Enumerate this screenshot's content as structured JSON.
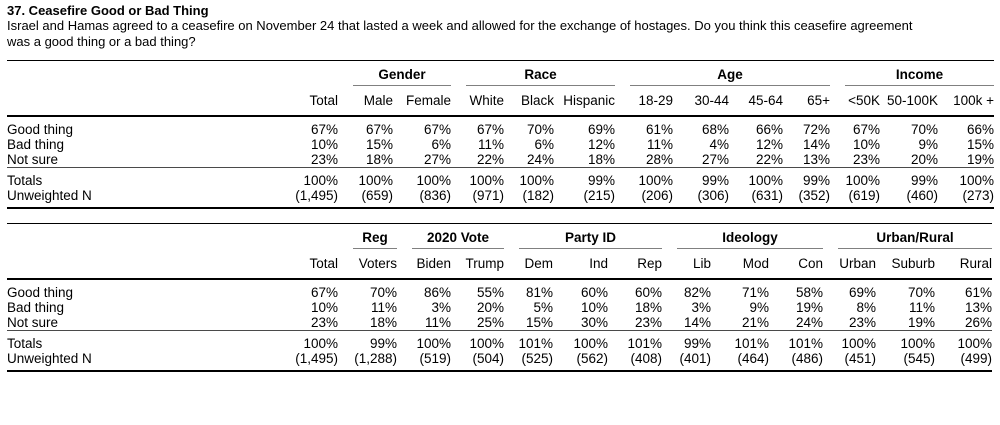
{
  "header": {
    "title": "37. Ceasefire Good or Bad Thing",
    "description_line1": "Israel and Hamas agreed to a ceasefire on November 24 that lasted a week and allowed for the exchange of hostages. Do you think this ceasefire agreement",
    "description_line2": "was a good thing or a bad thing?"
  },
  "tables": [
    {
      "name": "demographics",
      "groups": [
        {
          "label": "",
          "span": 1
        },
        {
          "label": "Gender",
          "span": 2
        },
        {
          "label": "Race",
          "span": 3
        },
        {
          "label": "Age",
          "span": 4
        },
        {
          "label": "Income",
          "span": 3
        }
      ],
      "columns": [
        "Total",
        "Male",
        "Female",
        "White",
        "Black",
        "Hispanic",
        "18-29",
        "30-44",
        "45-64",
        "65+",
        "<50K",
        "50-100K",
        "100k +"
      ],
      "rows": [
        {
          "label": "Good thing",
          "values": [
            "67%",
            "67%",
            "67%",
            "67%",
            "70%",
            "69%",
            "61%",
            "68%",
            "66%",
            "72%",
            "67%",
            "70%",
            "66%"
          ]
        },
        {
          "label": "Bad thing",
          "values": [
            "10%",
            "15%",
            "6%",
            "11%",
            "6%",
            "12%",
            "11%",
            "4%",
            "12%",
            "14%",
            "10%",
            "9%",
            "15%"
          ]
        },
        {
          "label": "Not sure",
          "values": [
            "23%",
            "18%",
            "27%",
            "22%",
            "24%",
            "18%",
            "28%",
            "27%",
            "22%",
            "13%",
            "23%",
            "20%",
            "19%"
          ]
        }
      ],
      "footer_rows": [
        {
          "label": "Totals",
          "values": [
            "100%",
            "100%",
            "100%",
            "100%",
            "100%",
            "99%",
            "100%",
            "99%",
            "100%",
            "99%",
            "100%",
            "99%",
            "100%"
          ]
        },
        {
          "label": "Unweighted N",
          "values": [
            "(1,495)",
            "(659)",
            "(836)",
            "(971)",
            "(182)",
            "(215)",
            "(206)",
            "(306)",
            "(631)",
            "(352)",
            "(619)",
            "(460)",
            "(273)"
          ]
        }
      ]
    },
    {
      "name": "politics",
      "groups": [
        {
          "label": "",
          "span": 1
        },
        {
          "label": "Reg",
          "span": 1
        },
        {
          "label": "2020 Vote",
          "span": 2
        },
        {
          "label": "Party ID",
          "span": 3
        },
        {
          "label": "Ideology",
          "span": 3
        },
        {
          "label": "Urban/Rural",
          "span": 3
        }
      ],
      "columns": [
        "Total",
        "Voters",
        "Biden",
        "Trump",
        "Dem",
        "Ind",
        "Rep",
        "Lib",
        "Mod",
        "Con",
        "Urban",
        "Suburb",
        "Rural"
      ],
      "rows": [
        {
          "label": "Good thing",
          "values": [
            "67%",
            "70%",
            "86%",
            "55%",
            "81%",
            "60%",
            "60%",
            "82%",
            "71%",
            "58%",
            "69%",
            "70%",
            "61%"
          ]
        },
        {
          "label": "Bad thing",
          "values": [
            "10%",
            "11%",
            "3%",
            "20%",
            "5%",
            "10%",
            "18%",
            "3%",
            "9%",
            "19%",
            "8%",
            "11%",
            "13%"
          ]
        },
        {
          "label": "Not sure",
          "values": [
            "23%",
            "18%",
            "11%",
            "25%",
            "15%",
            "30%",
            "23%",
            "14%",
            "21%",
            "24%",
            "23%",
            "19%",
            "26%"
          ]
        }
      ],
      "footer_rows": [
        {
          "label": "Totals",
          "values": [
            "100%",
            "99%",
            "100%",
            "100%",
            "101%",
            "100%",
            "101%",
            "99%",
            "101%",
            "101%",
            "100%",
            "100%",
            "100%"
          ]
        },
        {
          "label": "Unweighted N",
          "values": [
            "(1,495)",
            "(1,288)",
            "(519)",
            "(504)",
            "(525)",
            "(562)",
            "(408)",
            "(401)",
            "(464)",
            "(486)",
            "(451)",
            "(545)",
            "(499)"
          ]
        }
      ]
    }
  ]
}
